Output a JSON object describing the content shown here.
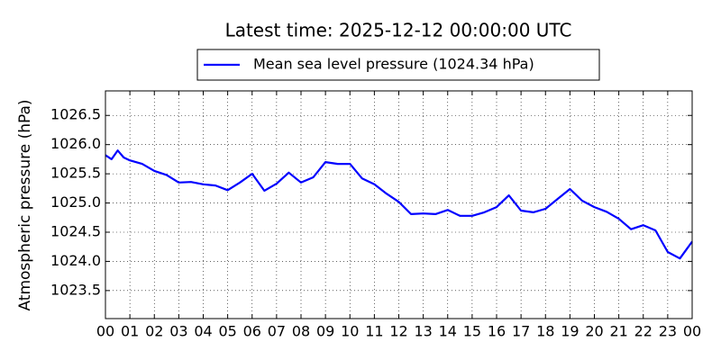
{
  "chart_data": {
    "type": "line",
    "title": "Latest time: 2025-12-12 00:00:00 UTC",
    "ylabel": "Atmospheric pressure (hPa)",
    "x": [
      0,
      0.25,
      0.5,
      0.75,
      1,
      1.5,
      2,
      2.5,
      3,
      3.5,
      4,
      4.5,
      5,
      5.5,
      6,
      6.5,
      7,
      7.5,
      8,
      8.5,
      9,
      9.5,
      10,
      10.5,
      11,
      11.5,
      12,
      12.5,
      13,
      13.5,
      14,
      14.5,
      15,
      15.5,
      16,
      16.5,
      17,
      17.5,
      18,
      18.5,
      19,
      19.5,
      20,
      20.5,
      21,
      21.5,
      22,
      22.5,
      23,
      23.5,
      24
    ],
    "series": [
      {
        "name": "Mean sea level pressure (1024.34 hPa)",
        "color": "#0000ff",
        "values": [
          1025.82,
          1025.75,
          1025.9,
          1025.78,
          1025.73,
          1025.67,
          1025.55,
          1025.48,
          1025.35,
          1025.36,
          1025.32,
          1025.3,
          1025.22,
          1025.35,
          1025.5,
          1025.21,
          1025.33,
          1025.52,
          1025.35,
          1025.44,
          1025.7,
          1025.67,
          1025.67,
          1025.42,
          1025.32,
          1025.16,
          1025.02,
          1024.81,
          1024.82,
          1024.81,
          1024.88,
          1024.78,
          1024.78,
          1024.84,
          1024.93,
          1025.13,
          1024.87,
          1024.84,
          1024.9,
          1025.07,
          1025.24,
          1025.04,
          1024.93,
          1024.85,
          1024.73,
          1024.55,
          1024.62,
          1024.53,
          1024.16,
          1024.05,
          1024.34
        ]
      }
    ],
    "xlim": [
      0,
      24
    ],
    "xticks": [
      {
        "value": 0,
        "label": "00"
      },
      {
        "value": 1,
        "label": "01"
      },
      {
        "value": 2,
        "label": "02"
      },
      {
        "value": 3,
        "label": "03"
      },
      {
        "value": 4,
        "label": "04"
      },
      {
        "value": 5,
        "label": "05"
      },
      {
        "value": 6,
        "label": "06"
      },
      {
        "value": 7,
        "label": "07"
      },
      {
        "value": 8,
        "label": "08"
      },
      {
        "value": 9,
        "label": "09"
      },
      {
        "value": 10,
        "label": "10"
      },
      {
        "value": 11,
        "label": "11"
      },
      {
        "value": 12,
        "label": "12"
      },
      {
        "value": 13,
        "label": "13"
      },
      {
        "value": 14,
        "label": "14"
      },
      {
        "value": 15,
        "label": "15"
      },
      {
        "value": 16,
        "label": "16"
      },
      {
        "value": 17,
        "label": "17"
      },
      {
        "value": 18,
        "label": "18"
      },
      {
        "value": 19,
        "label": "19"
      },
      {
        "value": 20,
        "label": "20"
      },
      {
        "value": 21,
        "label": "21"
      },
      {
        "value": 22,
        "label": "22"
      },
      {
        "value": 23,
        "label": "23"
      },
      {
        "value": 24,
        "label": "00"
      }
    ],
    "ylim": [
      1023.02,
      1026.92
    ],
    "yticks": [
      1023.5,
      {
        "value": 1024,
        "label": "1024.0"
      },
      1024.5,
      {
        "value": 1025,
        "label": "1025.0"
      },
      1025.5,
      {
        "value": 1026,
        "label": "1026.0"
      },
      1026.5
    ],
    "grid": true
  }
}
